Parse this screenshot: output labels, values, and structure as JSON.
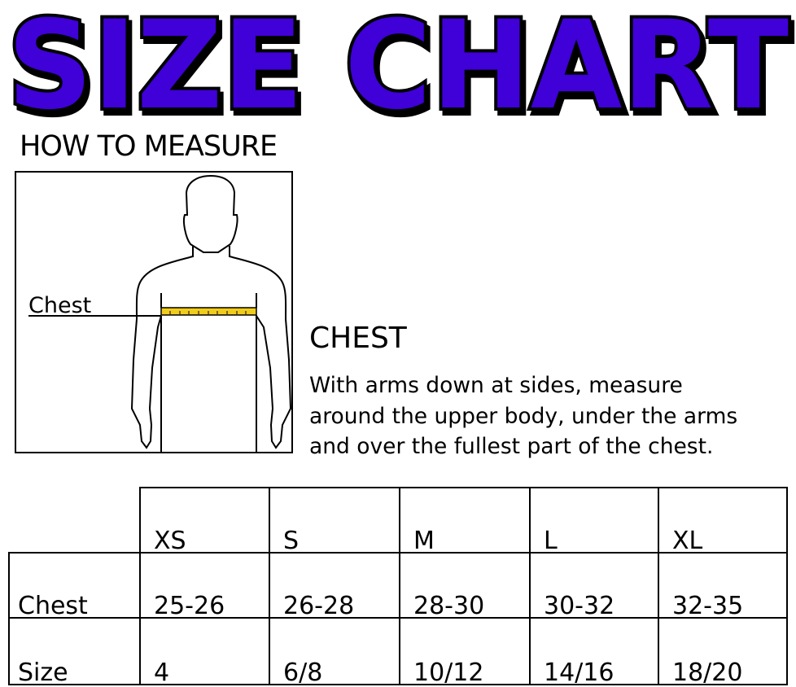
{
  "title": "SIZE CHART",
  "title_color": "#3f00d8",
  "how_to_measure": "HOW TO MEASURE",
  "figure": {
    "label": "Chest",
    "tape_color": "#f2cc1c"
  },
  "chest_section": {
    "heading": "CHEST",
    "lines": [
      "With arms down at sides, measure",
      "around the upper body, under the arms",
      "and over the fullest part of the chest."
    ]
  },
  "table": {
    "sizes": [
      "XS",
      "S",
      "M",
      "L",
      "XL"
    ],
    "rows": [
      {
        "label": "Chest",
        "values": [
          "25-26",
          "26-28",
          "28-30",
          "30-32",
          "32-35"
        ]
      },
      {
        "label": "Size",
        "values": [
          "4",
          "6/8",
          "10/12",
          "14/16",
          "18/20"
        ]
      }
    ]
  }
}
